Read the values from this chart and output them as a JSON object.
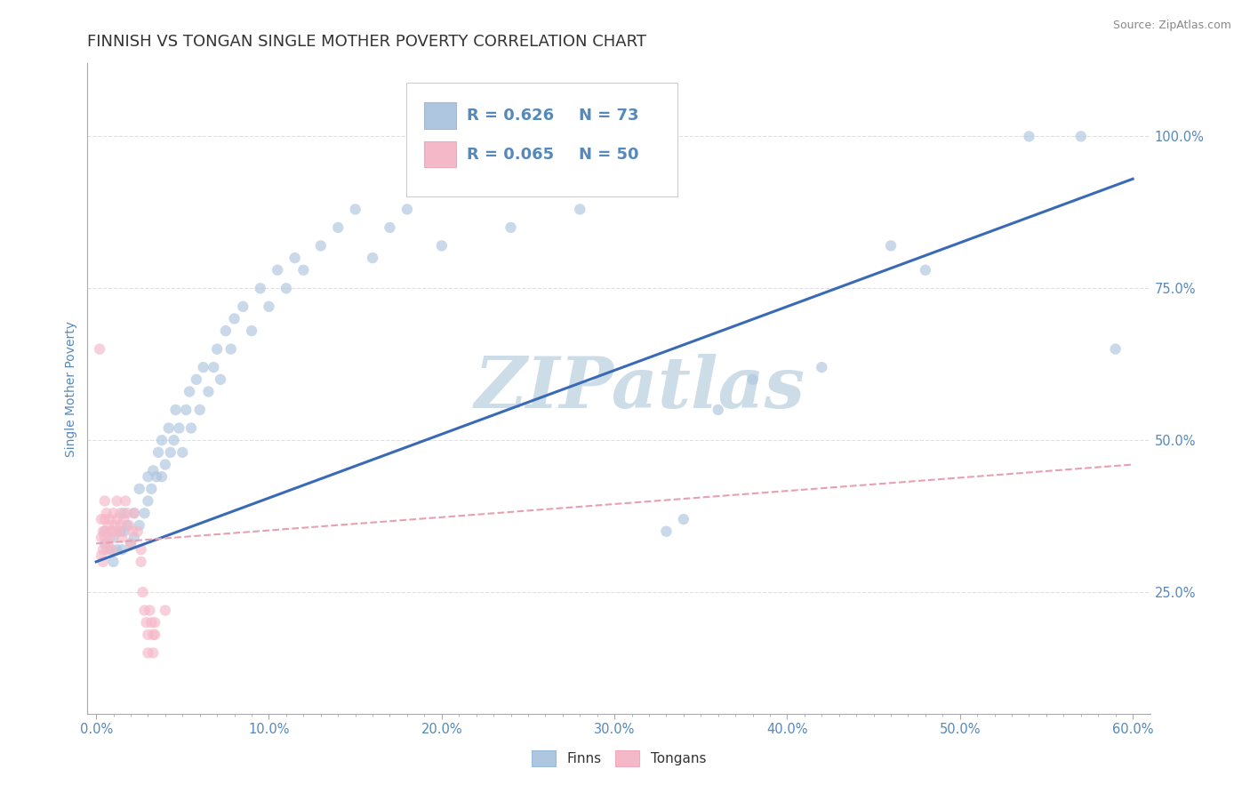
{
  "title": "FINNISH VS TONGAN SINGLE MOTHER POVERTY CORRELATION CHART",
  "source_text": "Source: ZipAtlas.com",
  "ylabel": "Single Mother Poverty",
  "x_ticks_labels": [
    "0.0%",
    "",
    "",
    "",
    "",
    "",
    "",
    "",
    "",
    "",
    "10.0%",
    "",
    "",
    "",
    "",
    "",
    "",
    "",
    "",
    "",
    "20.0%",
    "",
    "",
    "",
    "",
    "",
    "",
    "",
    "",
    "",
    "30.0%",
    "",
    "",
    "",
    "",
    "",
    "",
    "",
    "",
    "",
    "40.0%",
    "",
    "",
    "",
    "",
    "",
    "",
    "",
    "",
    "",
    "50.0%",
    "",
    "",
    "",
    "",
    "",
    "",
    "",
    "",
    "",
    "60.0%"
  ],
  "x_ticks_vals": [
    0.0,
    0.01,
    0.02,
    0.03,
    0.04,
    0.05,
    0.06,
    0.07,
    0.08,
    0.09,
    0.1,
    0.11,
    0.12,
    0.13,
    0.14,
    0.15,
    0.16,
    0.17,
    0.18,
    0.19,
    0.2,
    0.21,
    0.22,
    0.23,
    0.24,
    0.25,
    0.26,
    0.27,
    0.28,
    0.29,
    0.3,
    0.31,
    0.32,
    0.33,
    0.34,
    0.35,
    0.36,
    0.37,
    0.38,
    0.39,
    0.4,
    0.41,
    0.42,
    0.43,
    0.44,
    0.45,
    0.46,
    0.47,
    0.48,
    0.49,
    0.5,
    0.51,
    0.52,
    0.53,
    0.54,
    0.55,
    0.56,
    0.57,
    0.58,
    0.59,
    0.6
  ],
  "x_major_ticks": [
    0.0,
    0.1,
    0.2,
    0.3,
    0.4,
    0.5,
    0.6
  ],
  "x_major_labels": [
    "0.0%",
    "10.0%",
    "20.0%",
    "30.0%",
    "40.0%",
    "50.0%",
    "60.0%"
  ],
  "y_ticks_labels": [
    "25.0%",
    "50.0%",
    "75.0%",
    "100.0%"
  ],
  "y_ticks_vals": [
    0.25,
    0.5,
    0.75,
    1.0
  ],
  "xlim": [
    -0.005,
    0.61
  ],
  "ylim": [
    0.05,
    1.12
  ],
  "finn_R": 0.626,
  "finn_N": 73,
  "tongan_R": 0.065,
  "tongan_N": 50,
  "legend_finn_color": "#aec6df",
  "legend_tongan_color": "#f5b8c8",
  "finn_scatter_color": "#aec6df",
  "tongan_scatter_color": "#f5b8c8",
  "finn_line_color": "#3a6ab5",
  "tongan_line_color": "#e8a0b0",
  "watermark_text": "ZIPatlas",
  "watermark_color": "#cddde8",
  "background_color": "#ffffff",
  "grid_color": "#e0e0e0",
  "title_color": "#333333",
  "axis_label_color": "#5588bb",
  "tick_label_color": "#5588bb",
  "legend_R_color": "#5588bb",
  "finn_points": [
    [
      0.005,
      0.35
    ],
    [
      0.005,
      0.33
    ],
    [
      0.008,
      0.32
    ],
    [
      0.01,
      0.34
    ],
    [
      0.01,
      0.3
    ],
    [
      0.012,
      0.32
    ],
    [
      0.014,
      0.35
    ],
    [
      0.015,
      0.32
    ],
    [
      0.016,
      0.35
    ],
    [
      0.016,
      0.38
    ],
    [
      0.018,
      0.36
    ],
    [
      0.02,
      0.33
    ],
    [
      0.022,
      0.34
    ],
    [
      0.022,
      0.38
    ],
    [
      0.025,
      0.36
    ],
    [
      0.025,
      0.42
    ],
    [
      0.028,
      0.38
    ],
    [
      0.03,
      0.4
    ],
    [
      0.03,
      0.44
    ],
    [
      0.032,
      0.42
    ],
    [
      0.033,
      0.45
    ],
    [
      0.035,
      0.44
    ],
    [
      0.036,
      0.48
    ],
    [
      0.038,
      0.44
    ],
    [
      0.038,
      0.5
    ],
    [
      0.04,
      0.46
    ],
    [
      0.042,
      0.52
    ],
    [
      0.043,
      0.48
    ],
    [
      0.045,
      0.5
    ],
    [
      0.046,
      0.55
    ],
    [
      0.048,
      0.52
    ],
    [
      0.05,
      0.48
    ],
    [
      0.052,
      0.55
    ],
    [
      0.054,
      0.58
    ],
    [
      0.055,
      0.52
    ],
    [
      0.058,
      0.6
    ],
    [
      0.06,
      0.55
    ],
    [
      0.062,
      0.62
    ],
    [
      0.065,
      0.58
    ],
    [
      0.068,
      0.62
    ],
    [
      0.07,
      0.65
    ],
    [
      0.072,
      0.6
    ],
    [
      0.075,
      0.68
    ],
    [
      0.078,
      0.65
    ],
    [
      0.08,
      0.7
    ],
    [
      0.085,
      0.72
    ],
    [
      0.09,
      0.68
    ],
    [
      0.095,
      0.75
    ],
    [
      0.1,
      0.72
    ],
    [
      0.105,
      0.78
    ],
    [
      0.11,
      0.75
    ],
    [
      0.115,
      0.8
    ],
    [
      0.12,
      0.78
    ],
    [
      0.13,
      0.82
    ],
    [
      0.14,
      0.85
    ],
    [
      0.15,
      0.88
    ],
    [
      0.16,
      0.8
    ],
    [
      0.17,
      0.85
    ],
    [
      0.18,
      0.88
    ],
    [
      0.19,
      0.92
    ],
    [
      0.2,
      0.82
    ],
    [
      0.24,
      0.85
    ],
    [
      0.28,
      0.88
    ],
    [
      0.33,
      0.35
    ],
    [
      0.34,
      0.37
    ],
    [
      0.36,
      0.55
    ],
    [
      0.38,
      0.6
    ],
    [
      0.42,
      0.62
    ],
    [
      0.46,
      0.82
    ],
    [
      0.48,
      0.78
    ],
    [
      0.54,
      1.0
    ],
    [
      0.57,
      1.0
    ],
    [
      0.59,
      0.65
    ]
  ],
  "tongan_points": [
    [
      0.002,
      0.65
    ],
    [
      0.003,
      0.37
    ],
    [
      0.003,
      0.34
    ],
    [
      0.003,
      0.31
    ],
    [
      0.004,
      0.35
    ],
    [
      0.004,
      0.32
    ],
    [
      0.004,
      0.3
    ],
    [
      0.005,
      0.4
    ],
    [
      0.005,
      0.37
    ],
    [
      0.005,
      0.34
    ],
    [
      0.006,
      0.38
    ],
    [
      0.006,
      0.35
    ],
    [
      0.006,
      0.32
    ],
    [
      0.007,
      0.36
    ],
    [
      0.007,
      0.33
    ],
    [
      0.008,
      0.37
    ],
    [
      0.008,
      0.34
    ],
    [
      0.009,
      0.35
    ],
    [
      0.009,
      0.32
    ],
    [
      0.01,
      0.38
    ],
    [
      0.01,
      0.35
    ],
    [
      0.011,
      0.36
    ],
    [
      0.012,
      0.4
    ],
    [
      0.012,
      0.37
    ],
    [
      0.013,
      0.35
    ],
    [
      0.014,
      0.38
    ],
    [
      0.014,
      0.36
    ],
    [
      0.015,
      0.34
    ],
    [
      0.016,
      0.37
    ],
    [
      0.017,
      0.4
    ],
    [
      0.018,
      0.38
    ],
    [
      0.019,
      0.36
    ],
    [
      0.02,
      0.33
    ],
    [
      0.021,
      0.35
    ],
    [
      0.022,
      0.38
    ],
    [
      0.024,
      0.35
    ],
    [
      0.026,
      0.32
    ],
    [
      0.026,
      0.3
    ],
    [
      0.027,
      0.25
    ],
    [
      0.028,
      0.22
    ],
    [
      0.029,
      0.2
    ],
    [
      0.03,
      0.18
    ],
    [
      0.03,
      0.15
    ],
    [
      0.031,
      0.22
    ],
    [
      0.032,
      0.2
    ],
    [
      0.033,
      0.18
    ],
    [
      0.033,
      0.15
    ],
    [
      0.034,
      0.2
    ],
    [
      0.034,
      0.18
    ],
    [
      0.04,
      0.22
    ]
  ],
  "finn_line_x": [
    0.0,
    0.6
  ],
  "finn_line_y": [
    0.3,
    0.93
  ],
  "tongan_line_x": [
    0.0,
    0.6
  ],
  "tongan_line_y": [
    0.33,
    0.46
  ],
  "scatter_size": 80,
  "scatter_alpha": 0.65,
  "title_fontsize": 13,
  "axis_fontsize": 10,
  "tick_fontsize": 10.5
}
